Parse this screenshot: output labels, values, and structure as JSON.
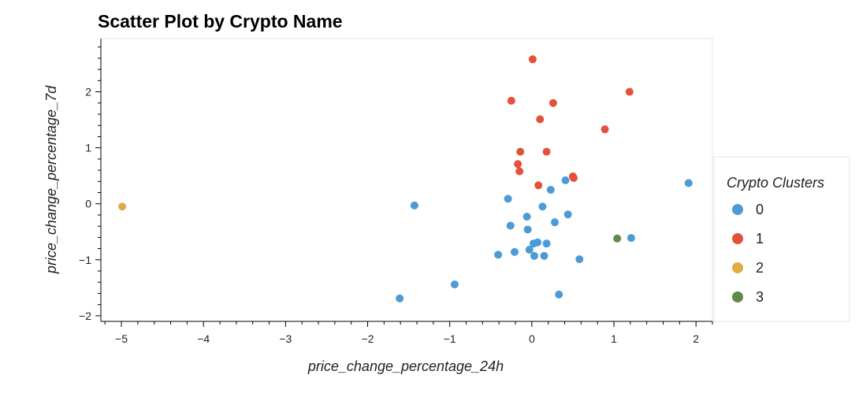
{
  "chart_data": {
    "type": "scatter",
    "title": "Scatter Plot by Crypto Name",
    "xlabel": "price_change_percentage_24h",
    "ylabel": "price_change_percentage_7d",
    "xlim": [
      -5.25,
      2.2
    ],
    "ylim": [
      -2.1,
      2.95
    ],
    "x_ticks": [
      -5,
      -4,
      -3,
      -2,
      -1,
      0,
      1,
      2
    ],
    "y_ticks": [
      -2,
      -1,
      0,
      1,
      2
    ],
    "x_tick_labels": [
      "−5",
      "−4",
      "−3",
      "−2",
      "−1",
      "0",
      "1",
      "2"
    ],
    "y_tick_labels": [
      "−2",
      "−1",
      "0",
      "1",
      "2"
    ],
    "grid": false,
    "legend": {
      "title": "Crypto Clusters",
      "position": "right"
    },
    "series": [
      {
        "name": "0",
        "color": "#4c9bd6",
        "points": [
          [
            1.91,
            0.37
          ],
          [
            1.21,
            -0.61
          ],
          [
            0.58,
            -0.99
          ],
          [
            0.33,
            -1.62
          ],
          [
            0.44,
            -0.19
          ],
          [
            0.41,
            0.42
          ],
          [
            0.28,
            -0.33
          ],
          [
            0.23,
            0.25
          ],
          [
            0.13,
            -0.05
          ],
          [
            0.18,
            -0.71
          ],
          [
            0.15,
            -0.93
          ],
          [
            0.07,
            -0.69
          ],
          [
            0.02,
            -0.71
          ],
          [
            0.03,
            -0.93
          ],
          [
            -0.03,
            -0.82
          ],
          [
            -0.05,
            -0.46
          ],
          [
            -0.06,
            -0.23
          ],
          [
            -0.21,
            -0.86
          ],
          [
            -0.26,
            -0.39
          ],
          [
            -0.29,
            0.09
          ],
          [
            -0.41,
            -0.91
          ],
          [
            -0.94,
            -1.44
          ],
          [
            -1.43,
            -0.03
          ],
          [
            -1.61,
            -1.69
          ]
        ]
      },
      {
        "name": "1",
        "color": "#e4513a",
        "points": [
          [
            0.01,
            2.58
          ],
          [
            1.19,
            2.0
          ],
          [
            -0.25,
            1.84
          ],
          [
            0.26,
            1.8
          ],
          [
            0.1,
            1.51
          ],
          [
            0.89,
            1.33
          ],
          [
            -0.14,
            0.93
          ],
          [
            0.18,
            0.93
          ],
          [
            -0.17,
            0.71
          ],
          [
            -0.15,
            0.58
          ],
          [
            0.5,
            0.49
          ],
          [
            0.51,
            0.46
          ],
          [
            0.08,
            0.33
          ]
        ]
      },
      {
        "name": "2",
        "color": "#e0ac43",
        "points": [
          [
            -4.99,
            -0.05
          ]
        ]
      },
      {
        "name": "3",
        "color": "#5f8a4a",
        "points": [
          [
            1.04,
            -0.62
          ]
        ]
      }
    ]
  }
}
